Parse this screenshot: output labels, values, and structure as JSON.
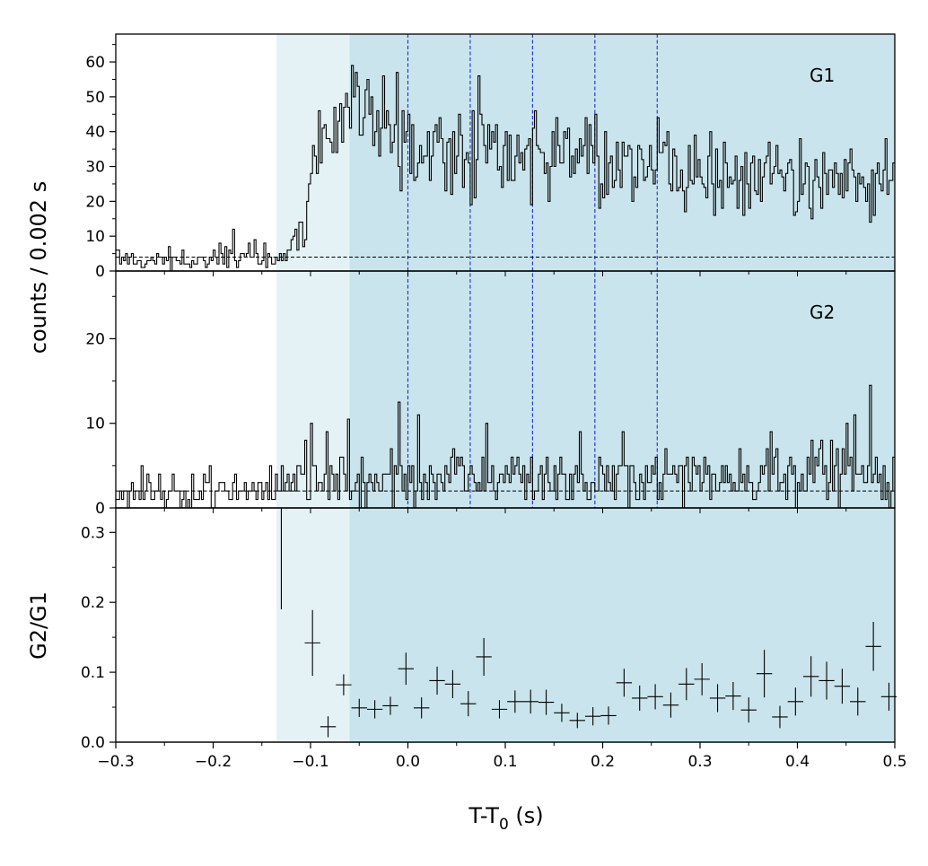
{
  "chart_data": {
    "type": "line",
    "x_axis": {
      "label_main": "T-T",
      "label_sub": "0",
      "label_unit": " (s)",
      "range": [
        -0.3,
        0.5
      ],
      "ticks": [
        -0.3,
        -0.2,
        -0.1,
        0.0,
        0.1,
        0.2,
        0.3,
        0.4,
        0.5
      ],
      "tick_labels": [
        "−0.3",
        "−0.2",
        "−0.1",
        "0.0",
        "0.1",
        "0.2",
        "0.3",
        "0.4",
        "0.5"
      ]
    },
    "shared_ylabel": "counts /  0.002 s",
    "shading": [
      {
        "x_start": -0.135,
        "x_end": -0.06,
        "color": "#e4f2f6"
      },
      {
        "x_start": -0.06,
        "x_end": 0.5,
        "color": "#c9e4ec"
      }
    ],
    "vertical_lines": {
      "x": [
        0.0,
        0.064,
        0.128,
        0.192,
        0.256
      ],
      "color": "#1a2fd6",
      "style": "dashed"
    },
    "panels": [
      {
        "label": "G1",
        "ylim": [
          0,
          68
        ],
        "ticks": [
          0,
          10,
          20,
          30,
          40,
          50,
          60
        ],
        "tick_labels": [
          "0",
          "10",
          "20",
          "30",
          "40",
          "50",
          "60"
        ],
        "background_level": 4,
        "bin_width": 0.002,
        "profile": [
          [
            -0.3,
            3
          ],
          [
            -0.2,
            3
          ],
          [
            -0.16,
            4
          ],
          [
            -0.13,
            5
          ],
          [
            -0.115,
            8
          ],
          [
            -0.105,
            15
          ],
          [
            -0.1,
            25
          ],
          [
            -0.09,
            36
          ],
          [
            -0.07,
            41
          ],
          [
            -0.06,
            47
          ],
          [
            -0.05,
            44
          ],
          [
            -0.03,
            40
          ],
          [
            0.0,
            37
          ],
          [
            0.05,
            34
          ],
          [
            0.1,
            33
          ],
          [
            0.15,
            33
          ],
          [
            0.2,
            32
          ],
          [
            0.25,
            31
          ],
          [
            0.3,
            28
          ],
          [
            0.35,
            26
          ],
          [
            0.4,
            26
          ],
          [
            0.5,
            26
          ]
        ],
        "peaks": [
          [
            -0.058,
            59
          ],
          [
            -0.045,
            52
          ],
          [
            -0.038,
            50
          ],
          [
            0.0,
            45
          ],
          [
            0.075,
            42
          ],
          [
            0.13,
            46
          ],
          [
            0.192,
            45
          ],
          [
            0.256,
            44
          ],
          [
            0.31,
            40
          ],
          [
            0.49,
            38
          ],
          [
            -0.18,
            12
          ]
        ]
      },
      {
        "label": "G2",
        "ylim": [
          0,
          28
        ],
        "ticks": [
          0,
          10,
          20
        ],
        "tick_labels": [
          "0",
          "10",
          "20"
        ],
        "background_level": 2,
        "bin_width": 0.002,
        "profile": [
          [
            -0.3,
            2
          ],
          [
            -0.14,
            2.2
          ],
          [
            -0.13,
            3.5
          ],
          [
            0.5,
            4
          ]
        ],
        "peaks": [
          [
            0.475,
            14.5
          ],
          [
            -0.01,
            12.5
          ],
          [
            0.08,
            10
          ],
          [
            -0.1,
            10
          ],
          [
            -0.062,
            10.5
          ],
          [
            0.45,
            10
          ]
        ]
      },
      {
        "label": "",
        "ylabel": "G2/G1",
        "ylim": [
          0,
          0.335
        ],
        "ticks": [
          0.0,
          0.1,
          0.2,
          0.3
        ],
        "tick_labels": [
          "0.0",
          "0.1",
          "0.2",
          "0.3"
        ],
        "points": [
          {
            "x": -0.13,
            "y": 0.27,
            "xerr": 0.0,
            "yerr": 0.08
          },
          {
            "x": -0.098,
            "y": 0.142,
            "xerr": 0.008,
            "yerr": 0.047
          },
          {
            "x": -0.082,
            "y": 0.022,
            "xerr": 0.008,
            "yerr": 0.015
          },
          {
            "x": -0.066,
            "y": 0.082,
            "xerr": 0.008,
            "yerr": 0.015
          },
          {
            "x": -0.05,
            "y": 0.049,
            "xerr": 0.008,
            "yerr": 0.013
          },
          {
            "x": -0.034,
            "y": 0.047,
            "xerr": 0.008,
            "yerr": 0.013
          },
          {
            "x": -0.018,
            "y": 0.052,
            "xerr": 0.008,
            "yerr": 0.013
          },
          {
            "x": -0.002,
            "y": 0.105,
            "xerr": 0.008,
            "yerr": 0.023
          },
          {
            "x": 0.014,
            "y": 0.049,
            "xerr": 0.008,
            "yerr": 0.015
          },
          {
            "x": 0.03,
            "y": 0.088,
            "xerr": 0.008,
            "yerr": 0.02
          },
          {
            "x": 0.046,
            "y": 0.083,
            "xerr": 0.008,
            "yerr": 0.02
          },
          {
            "x": 0.062,
            "y": 0.055,
            "xerr": 0.008,
            "yerr": 0.018
          },
          {
            "x": 0.078,
            "y": 0.122,
            "xerr": 0.008,
            "yerr": 0.027
          },
          {
            "x": 0.094,
            "y": 0.047,
            "xerr": 0.008,
            "yerr": 0.013
          },
          {
            "x": 0.11,
            "y": 0.058,
            "xerr": 0.008,
            "yerr": 0.016
          },
          {
            "x": 0.126,
            "y": 0.058,
            "xerr": 0.008,
            "yerr": 0.017
          },
          {
            "x": 0.142,
            "y": 0.057,
            "xerr": 0.008,
            "yerr": 0.018
          },
          {
            "x": 0.158,
            "y": 0.042,
            "xerr": 0.008,
            "yerr": 0.013
          },
          {
            "x": 0.174,
            "y": 0.031,
            "xerr": 0.008,
            "yerr": 0.011
          },
          {
            "x": 0.19,
            "y": 0.037,
            "xerr": 0.008,
            "yerr": 0.013
          },
          {
            "x": 0.206,
            "y": 0.038,
            "xerr": 0.008,
            "yerr": 0.013
          },
          {
            "x": 0.222,
            "y": 0.085,
            "xerr": 0.008,
            "yerr": 0.02
          },
          {
            "x": 0.238,
            "y": 0.063,
            "xerr": 0.008,
            "yerr": 0.018
          },
          {
            "x": 0.254,
            "y": 0.065,
            "xerr": 0.008,
            "yerr": 0.018
          },
          {
            "x": 0.27,
            "y": 0.053,
            "xerr": 0.008,
            "yerr": 0.018
          },
          {
            "x": 0.286,
            "y": 0.083,
            "xerr": 0.008,
            "yerr": 0.023
          },
          {
            "x": 0.302,
            "y": 0.09,
            "xerr": 0.008,
            "yerr": 0.023
          },
          {
            "x": 0.318,
            "y": 0.063,
            "xerr": 0.008,
            "yerr": 0.02
          },
          {
            "x": 0.334,
            "y": 0.066,
            "xerr": 0.008,
            "yerr": 0.02
          },
          {
            "x": 0.35,
            "y": 0.046,
            "xerr": 0.008,
            "yerr": 0.018
          },
          {
            "x": 0.366,
            "y": 0.098,
            "xerr": 0.008,
            "yerr": 0.034
          },
          {
            "x": 0.382,
            "y": 0.036,
            "xerr": 0.008,
            "yerr": 0.016
          },
          {
            "x": 0.398,
            "y": 0.058,
            "xerr": 0.008,
            "yerr": 0.02
          },
          {
            "x": 0.414,
            "y": 0.094,
            "xerr": 0.008,
            "yerr": 0.029
          },
          {
            "x": 0.43,
            "y": 0.088,
            "xerr": 0.008,
            "yerr": 0.027
          },
          {
            "x": 0.446,
            "y": 0.08,
            "xerr": 0.008,
            "yerr": 0.025
          },
          {
            "x": 0.462,
            "y": 0.058,
            "xerr": 0.008,
            "yerr": 0.02
          },
          {
            "x": 0.478,
            "y": 0.137,
            "xerr": 0.008,
            "yerr": 0.035
          },
          {
            "x": 0.494,
            "y": 0.065,
            "xerr": 0.008,
            "yerr": 0.02
          }
        ]
      }
    ]
  }
}
